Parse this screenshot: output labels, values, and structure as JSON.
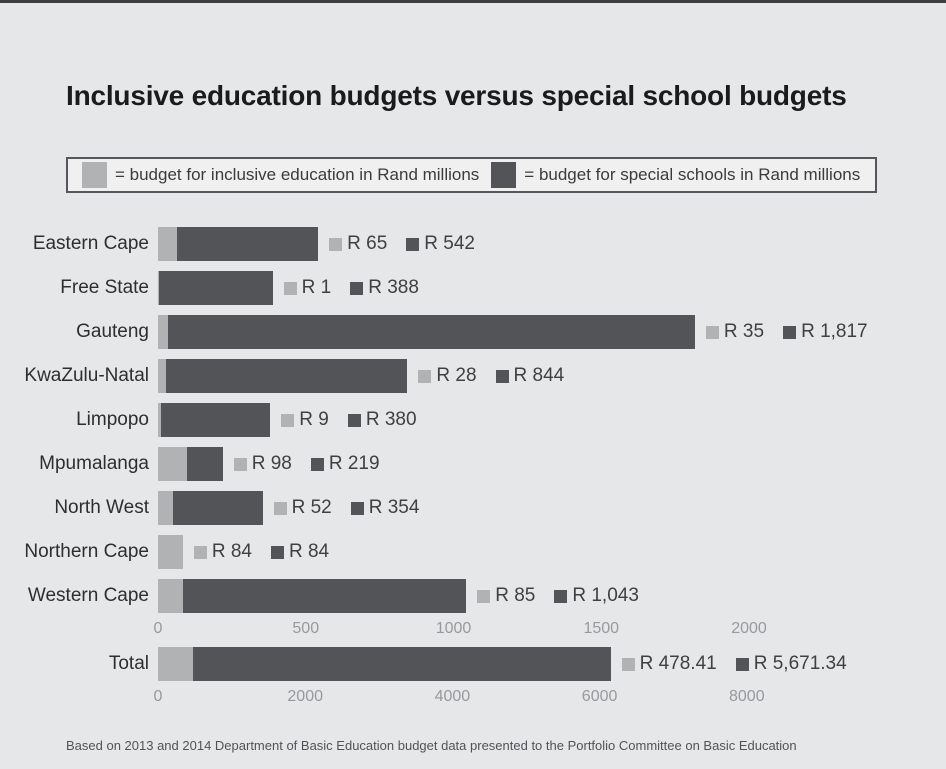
{
  "title": "Inclusive education budgets versus special school budgets",
  "legend": {
    "inclusive": "= budget for inclusive education in Rand millions",
    "special": "= budget for special schools in Rand millions"
  },
  "footer": "Based on 2013 and 2014 Department of Basic Education budget data presented to the Portfolio Committee on Basic Education",
  "colors": {
    "background": "#e6e7e8",
    "top_strip": "#3e3f41",
    "inclusive": "#b0b2b4",
    "special": "#525457",
    "legend_box_fill": "#f0f0f1",
    "legend_box_border": "#55575a",
    "tick_text": "#97999c",
    "label_text": "#2d2e30"
  },
  "chart_data": {
    "type": "bar",
    "orientation": "horizontal",
    "title": "Inclusive education budgets versus special school budgets",
    "categories": [
      "Eastern Cape",
      "Free State",
      "Gauteng",
      "KwaZulu-Natal",
      "Limpopo",
      "Mpumalanga",
      "North West",
      "Northern Cape",
      "Western Cape"
    ],
    "series": [
      {
        "name": "budget for inclusive education in Rand millions",
        "values": [
          65,
          1,
          35,
          28,
          9,
          98,
          52,
          84,
          85
        ]
      },
      {
        "name": "budget for special schools in Rand millions",
        "values": [
          542,
          388,
          1817,
          844,
          380,
          219,
          354,
          84,
          1043
        ]
      }
    ],
    "rows": [
      {
        "label": "Eastern Cape",
        "inclusive": 65,
        "special": 542,
        "inclusive_label": "R 65",
        "special_label": "R 542"
      },
      {
        "label": "Free State",
        "inclusive": 1,
        "special": 388,
        "inclusive_label": "R 1",
        "special_label": "R 388"
      },
      {
        "label": "Gauteng",
        "inclusive": 35,
        "special": 1817,
        "inclusive_label": "R 35",
        "special_label": "R 1,817"
      },
      {
        "label": "KwaZulu-Natal",
        "inclusive": 28,
        "special": 844,
        "inclusive_label": "R 28",
        "special_label": "R 844"
      },
      {
        "label": "Limpopo",
        "inclusive": 9,
        "special": 380,
        "inclusive_label": "R 9",
        "special_label": "R 380"
      },
      {
        "label": "Mpumalanga",
        "inclusive": 98,
        "special": 219,
        "inclusive_label": "R 98",
        "special_label": "R 219"
      },
      {
        "label": "North West",
        "inclusive": 52,
        "special": 354,
        "inclusive_label": "R 52",
        "special_label": "R 354"
      },
      {
        "label": "Northern Cape",
        "inclusive": 84,
        "special": 84,
        "inclusive_label": "R 84",
        "special_label": "R 84"
      },
      {
        "label": "Western Cape",
        "inclusive": 85,
        "special": 1043,
        "inclusive_label": "R 85",
        "special_label": "R 1,043"
      }
    ],
    "total_row": {
      "label": "Total",
      "inclusive": 478.41,
      "special": 5671.34,
      "inclusive_label": "R 478.41",
      "special_label": "R 5,671.34",
      "stacked": true
    },
    "province_axis": {
      "ticks": [
        0,
        500,
        1000,
        1500,
        2000
      ],
      "range": [
        0,
        2000
      ]
    },
    "total_axis": {
      "ticks": [
        0,
        2000,
        4000,
        6000,
        8000
      ],
      "range": [
        0,
        8000
      ]
    },
    "grid": false,
    "legend_position": "top"
  }
}
